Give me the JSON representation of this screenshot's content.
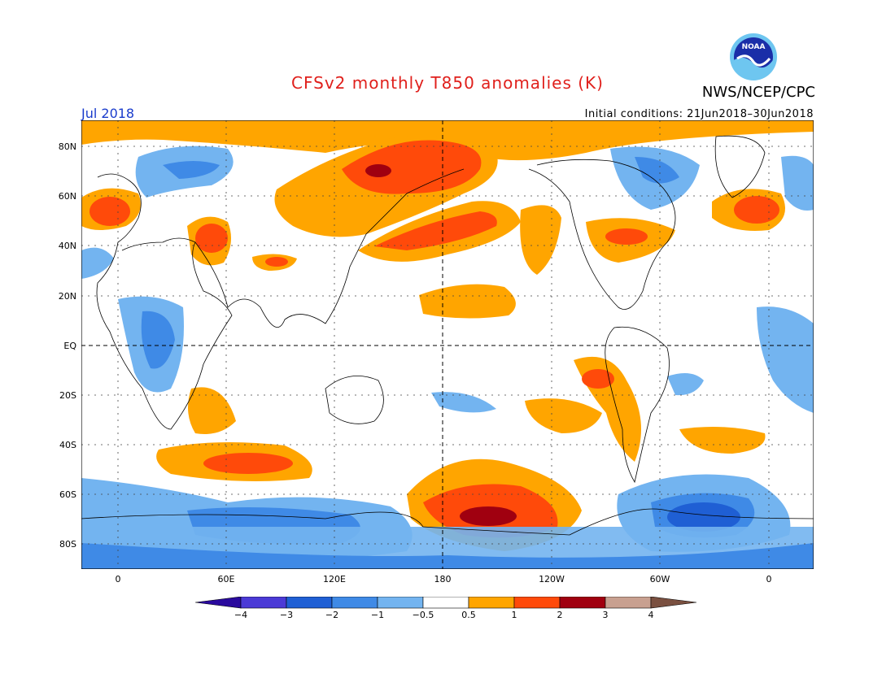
{
  "title": "CFSv2 monthly T850 anomalies (K)",
  "organization": "NWS/NCEP/CPC",
  "logo_text": "NOAA",
  "valid_month": "Jul 2018",
  "initial_conditions": "Initial conditions: 21Jun2018–30Jun2018",
  "lat_labels": [
    "80N",
    "60N",
    "40N",
    "20N",
    "EQ",
    "20S",
    "40S",
    "60S",
    "80S"
  ],
  "lon_labels": [
    "0",
    "60E",
    "120E",
    "180",
    "120W",
    "60W",
    "0"
  ],
  "colorbar": {
    "labels": [
      "−4",
      "−3",
      "−2",
      "−1",
      "−0.5",
      "0.5",
      "1",
      "2",
      "3",
      "4"
    ],
    "colors": [
      "#2a0a9e",
      "#4b3ad6",
      "#1f5fd4",
      "#3f8ae6",
      "#73b4f0",
      "#ffffff",
      "#ffa500",
      "#ff4a0a",
      "#a00010",
      "#c8a090",
      "#7a5040"
    ]
  }
}
